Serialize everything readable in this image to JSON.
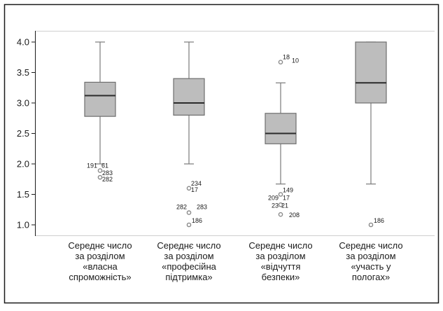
{
  "chart_data": {
    "type": "boxplot",
    "title": "",
    "xlabel": "",
    "ylabel": "",
    "ylim": [
      0.85,
      4.15
    ],
    "yticks": [
      "4.0",
      "3.5",
      "3.0",
      "2.5",
      "2.0",
      "1.5",
      "1.0"
    ],
    "grid": false,
    "legend": "none",
    "colors": {
      "box_fill": "#bdbdbd",
      "box_stroke": "#6e6e6e",
      "median": "#2b2b2b",
      "whisker": "#7a7a7a",
      "outlier": "#8a8a8a",
      "frame": "#1a1a1a"
    },
    "categories": [
      {
        "label_lines": [
          "Середнє число",
          "за розділом",
          "«власна",
          "спроможність»"
        ],
        "whisker_low": 2.0,
        "q1": 2.78,
        "median": 3.12,
        "q3": 3.34,
        "whisker_high": 4.0,
        "outliers": [
          {
            "value": 1.89,
            "labels": [
              "191",
              "61"
            ]
          },
          {
            "value": 1.78,
            "labels": [
              "283",
              "282"
            ]
          }
        ]
      },
      {
        "label_lines": [
          "Середнє число",
          "за розділом",
          "«професійна",
          "підтримка»"
        ],
        "whisker_low": 2.0,
        "q1": 2.8,
        "median": 3.0,
        "q3": 3.4,
        "whisker_high": 4.0,
        "outliers": [
          {
            "value": 1.6,
            "labels": [
              "234",
              "17"
            ]
          },
          {
            "value": 1.2,
            "labels": [
              "282",
              "283"
            ]
          },
          {
            "value": 1.0,
            "labels": [
              "186"
            ]
          }
        ]
      },
      {
        "label_lines": [
          "Середнє число",
          "за розділом",
          "«відчуття",
          "безпеки»"
        ],
        "whisker_low": 1.67,
        "q1": 2.33,
        "median": 2.5,
        "q3": 2.83,
        "whisker_high": 3.33,
        "outliers": [
          {
            "value": 3.67,
            "labels": [
              "18",
              "10"
            ]
          },
          {
            "value": 1.5,
            "labels": [
              "149",
              "209",
              "17"
            ]
          },
          {
            "value": 1.33,
            "labels": [
              "23",
              "21"
            ]
          },
          {
            "value": 1.17,
            "labels": [
              "208"
            ]
          }
        ]
      },
      {
        "label_lines": [
          "Середнє число",
          "за розділом",
          "«участь у",
          "пологах»"
        ],
        "whisker_low": 1.67,
        "q1": 3.0,
        "median": 3.33,
        "q3": 4.0,
        "whisker_high": 4.0,
        "outliers": [
          {
            "value": 1.0,
            "labels": [
              "186"
            ]
          }
        ]
      }
    ]
  }
}
